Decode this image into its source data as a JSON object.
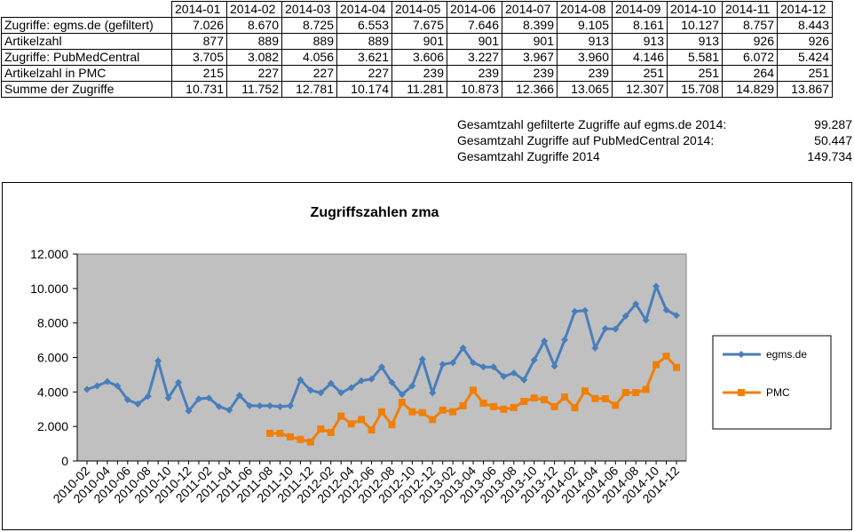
{
  "table": {
    "months": [
      "2014-01",
      "2014-02",
      "2014-03",
      "2014-04",
      "2014-05",
      "2014-06",
      "2014-07",
      "2014-08",
      "2014-09",
      "2014-10",
      "2014-11",
      "2014-12"
    ],
    "rows": [
      {
        "label": "Zugriffe: egms.de (gefiltert)",
        "values": [
          "7.026",
          "8.670",
          "8.725",
          "6.553",
          "7.675",
          "7.646",
          "8.399",
          "9.105",
          "8.161",
          "10.127",
          "8.757",
          "8.443"
        ]
      },
      {
        "label": "Artikelzahl",
        "values": [
          "877",
          "889",
          "889",
          "889",
          "901",
          "901",
          "901",
          "913",
          "913",
          "913",
          "926",
          "926"
        ]
      },
      {
        "label": "Zugriffe: PubMedCentral",
        "values": [
          "3.705",
          "3.082",
          "4.056",
          "3.621",
          "3.606",
          "3.227",
          "3.967",
          "3.960",
          "4.146",
          "5.581",
          "6.072",
          "5.424"
        ]
      },
      {
        "label": "Artikelzahl in PMC",
        "values": [
          "215",
          "227",
          "227",
          "227",
          "239",
          "239",
          "239",
          "239",
          "251",
          "251",
          "264",
          "251"
        ]
      },
      {
        "label": "Summe der Zugriffe",
        "values": [
          "10.731",
          "11.752",
          "12.781",
          "10.174",
          "11.281",
          "10.873",
          "12.366",
          "13.065",
          "12.307",
          "15.708",
          "14.829",
          "13.867"
        ]
      }
    ]
  },
  "totals": [
    {
      "label": "Gesamtzahl gefilterte Zugriffe auf egms.de 2014:",
      "value": "99.287"
    },
    {
      "label": "Gesamtzahl Zugriffe auf PubMedCentral 2014:",
      "value": "50.447"
    },
    {
      "label": "Gesamtzahl Zugriffe 2014",
      "value": "149.734"
    }
  ],
  "chart_data": {
    "type": "line",
    "title": "Zugriffszahlen zma",
    "xlabel": "",
    "ylabel": "",
    "ylim": [
      0,
      12000
    ],
    "yticks": [
      0,
      2000,
      4000,
      6000,
      8000,
      10000,
      12000
    ],
    "ytick_labels": [
      "0",
      "2.000",
      "4.000",
      "6.000",
      "8.000",
      "10.000",
      "12.000"
    ],
    "grid": false,
    "plot_background": "#c0c0c0",
    "legend_position": "right",
    "x": [
      "2010-02",
      "2010-03",
      "2010-04",
      "2010-05",
      "2010-06",
      "2010-07",
      "2010-08",
      "2010-09",
      "2010-10",
      "2010-11",
      "2010-12",
      "2011-01",
      "2011-02",
      "2011-03",
      "2011-04",
      "2011-05",
      "2011-06",
      "2011-07",
      "2011-08",
      "2011-09",
      "2011-10",
      "2011-11",
      "2011-12",
      "2012-01",
      "2012-02",
      "2012-03",
      "2012-04",
      "2012-05",
      "2012-06",
      "2012-07",
      "2012-08",
      "2012-09",
      "2012-10",
      "2012-11",
      "2012-12",
      "2013-01",
      "2013-02",
      "2013-03",
      "2013-04",
      "2013-05",
      "2013-06",
      "2013-07",
      "2013-08",
      "2013-09",
      "2013-10",
      "2013-11",
      "2013-12",
      "2014-01",
      "2014-02",
      "2014-03",
      "2014-04",
      "2014-05",
      "2014-06",
      "2014-07",
      "2014-08",
      "2014-09",
      "2014-10",
      "2014-11",
      "2014-12"
    ],
    "xtick_labels": [
      "2010-02",
      "2010-04",
      "2010-06",
      "2010-08",
      "2010-10",
      "2010-12",
      "2011-02",
      "2011-04",
      "2011-06",
      "2011-08",
      "2011-10",
      "2011-12",
      "2012-02",
      "2012-04",
      "2012-06",
      "2012-08",
      "2012-10",
      "2012-12",
      "2013-02",
      "2013-04",
      "2013-06",
      "2013-08",
      "2013-10",
      "2013-12",
      "2014-02",
      "2014-04",
      "2014-06",
      "2014-08",
      "2014-10",
      "2014-12"
    ],
    "series": [
      {
        "name": "egms.de",
        "color": "#4a7ebb",
        "marker": "diamond",
        "values": [
          4150,
          4350,
          4600,
          4350,
          3550,
          3300,
          3750,
          5800,
          3650,
          4550,
          2900,
          3600,
          3650,
          3150,
          2950,
          3800,
          3200,
          3200,
          3200,
          3150,
          3200,
          4700,
          4100,
          3950,
          4500,
          3950,
          4250,
          4650,
          4750,
          5450,
          4550,
          3850,
          4350,
          5900,
          3950,
          5600,
          5700,
          6550,
          5700,
          5450,
          5450,
          4900,
          5100,
          4700,
          5850,
          6950,
          5500,
          7026,
          8670,
          8725,
          6553,
          7675,
          7646,
          8399,
          9105,
          8161,
          10127,
          8757,
          8443
        ]
      },
      {
        "name": "PMC",
        "color": "#f07f09",
        "marker": "square",
        "values": [
          null,
          null,
          null,
          null,
          null,
          null,
          null,
          null,
          null,
          null,
          null,
          null,
          null,
          null,
          null,
          null,
          null,
          null,
          1600,
          1600,
          1400,
          1250,
          1100,
          1850,
          1650,
          2600,
          2150,
          2400,
          1800,
          2850,
          2100,
          3400,
          2850,
          2800,
          2400,
          2950,
          2850,
          3200,
          4100,
          3350,
          3150,
          3000,
          3100,
          3450,
          3650,
          3550,
          3150,
          3705,
          3082,
          4056,
          3621,
          3606,
          3227,
          3967,
          3960,
          4146,
          5581,
          6072,
          5424
        ]
      }
    ]
  }
}
